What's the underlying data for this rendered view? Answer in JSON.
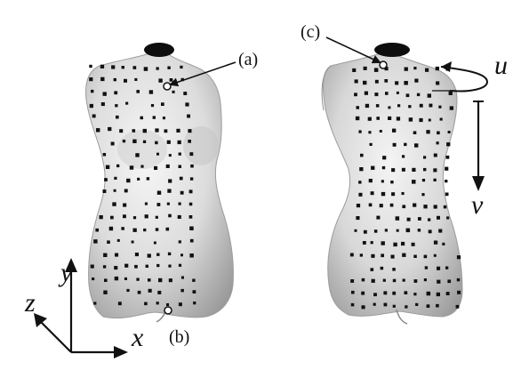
{
  "labels": {
    "a": "(a)",
    "b": "(b)",
    "c": "(c)"
  },
  "axes": {
    "x": "x",
    "y": "y",
    "z": "z",
    "u": "u",
    "v": "v"
  },
  "colors": {
    "torso_light": "#f2f2f2",
    "torso_mid": "#c9c9c9",
    "torso_dark": "#8a8a8a",
    "neck_hole": "#0d0d0d",
    "marker": "#111111"
  }
}
